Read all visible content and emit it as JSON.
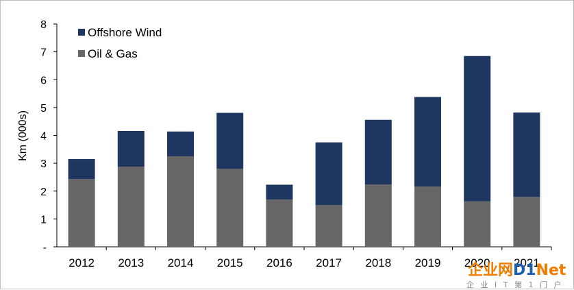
{
  "chart_data": {
    "type": "bar",
    "stacked": true,
    "categories": [
      "2012",
      "2013",
      "2014",
      "2015",
      "2016",
      "2017",
      "2018",
      "2019",
      "2020",
      "2021"
    ],
    "series": [
      {
        "name": "Oil & Gas",
        "color": "#666666",
        "values": [
          2.43,
          2.88,
          3.25,
          2.8,
          1.7,
          1.5,
          2.24,
          2.16,
          1.63,
          1.79
        ]
      },
      {
        "name": "Offshore Wind",
        "color": "#1f3660",
        "values": [
          0.72,
          1.28,
          0.89,
          2.01,
          0.53,
          2.25,
          2.32,
          3.22,
          5.22,
          3.03
        ]
      }
    ],
    "legend_order": [
      "Offshore Wind",
      "Oil & Gas"
    ],
    "legend_position": "top-left",
    "ylabel": "Km (000s)",
    "xlabel": "",
    "ylim": [
      0,
      8
    ],
    "yticks": [
      "-",
      "1",
      "2",
      "3",
      "4",
      "5",
      "6",
      "7",
      "8"
    ],
    "grid": false
  },
  "watermark": {
    "text": "企业网D1Net",
    "subtext": "企 业 I T 第 1 门 户",
    "color_orange": "#f07c00",
    "color_blue": "#1a5fb4"
  }
}
